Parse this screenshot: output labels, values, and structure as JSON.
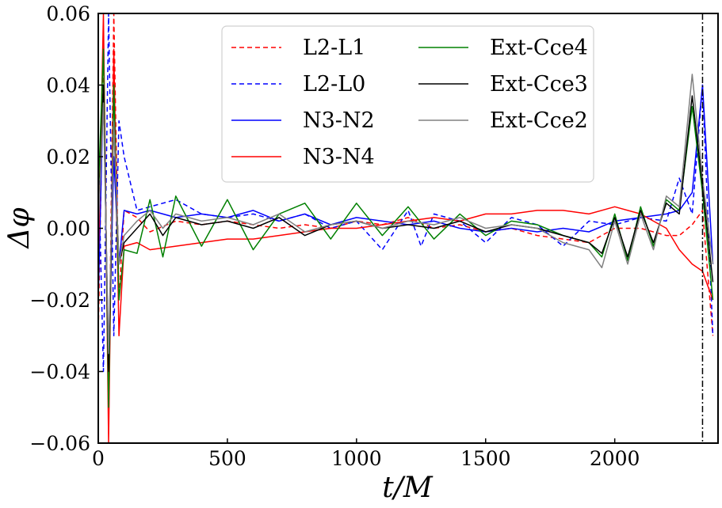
{
  "chart_data": {
    "type": "line",
    "xlabel": "t/M",
    "ylabel": "Δφ",
    "xlim": [
      0,
      2400
    ],
    "ylim": [
      -0.06,
      0.06
    ],
    "xticks": [
      0,
      500,
      1000,
      1500,
      2000
    ],
    "xtick_labels": [
      "0",
      "500",
      "1000",
      "1500",
      "2000"
    ],
    "yticks": [
      -0.06,
      -0.04,
      -0.02,
      0.0,
      0.02,
      0.04,
      0.06
    ],
    "ytick_labels": [
      "−0.06",
      "−0.04",
      "−0.02",
      "0.00",
      "0.02",
      "0.04",
      "0.06"
    ],
    "grid": false,
    "legend_position": "top-center",
    "legend_columns": 2,
    "vertical_line": {
      "x": 2340,
      "style": "dash-dot",
      "color": "#000000"
    },
    "series": [
      {
        "name": "L2-L1",
        "color": "#ff0000",
        "dash": "dashed",
        "x": [
          0,
          20,
          40,
          60,
          80,
          100,
          150,
          200,
          300,
          400,
          500,
          600,
          700,
          800,
          900,
          1000,
          1100,
          1200,
          1300,
          1400,
          1500,
          1600,
          1700,
          1800,
          1900,
          2000,
          2100,
          2200,
          2250,
          2300,
          2340,
          2380
        ],
        "y": [
          -0.03,
          0.05,
          -0.05,
          0.06,
          -0.02,
          0.005,
          0.003,
          -0.001,
          0.002,
          0.001,
          0.002,
          0.001,
          0.0,
          0.001,
          0.0,
          0.002,
          0.001,
          0.003,
          0.0,
          0.001,
          -0.001,
          0.0,
          -0.002,
          -0.003,
          -0.004,
          0.0,
          0.0,
          -0.002,
          -0.002,
          0.001,
          0.005,
          -0.03
        ]
      },
      {
        "name": "L2-L0",
        "color": "#0000ff",
        "dash": "dashed",
        "x": [
          0,
          20,
          40,
          60,
          80,
          100,
          150,
          200,
          300,
          400,
          500,
          600,
          700,
          800,
          900,
          1000,
          1100,
          1200,
          1250,
          1300,
          1400,
          1500,
          1600,
          1700,
          1800,
          1900,
          2000,
          2100,
          2200,
          2250,
          2300,
          2340,
          2380
        ],
        "y": [
          0.02,
          -0.04,
          0.06,
          -0.03,
          0.03,
          0.02,
          0.005,
          0.006,
          0.008,
          0.004,
          0.003,
          0.004,
          0.002,
          0.004,
          0.0,
          0.002,
          -0.006,
          0.005,
          -0.005,
          0.004,
          0.002,
          -0.004,
          0.003,
          0.001,
          -0.005,
          0.002,
          0.001,
          0.003,
          0.002,
          0.014,
          0.004,
          0.04,
          -0.03
        ]
      },
      {
        "name": "N3-N2",
        "color": "#0000ff",
        "dash": "solid",
        "x": [
          0,
          20,
          40,
          60,
          80,
          100,
          150,
          200,
          300,
          400,
          500,
          600,
          700,
          800,
          900,
          1000,
          1100,
          1200,
          1300,
          1400,
          1500,
          1600,
          1700,
          1800,
          1900,
          2000,
          2100,
          2200,
          2250,
          2300,
          2340,
          2380
        ],
        "y": [
          -0.02,
          0.04,
          -0.04,
          0.02,
          -0.01,
          0.005,
          0.004,
          0.005,
          0.003,
          0.004,
          0.003,
          0.005,
          0.002,
          0.004,
          0.001,
          0.003,
          0.002,
          0.001,
          0.002,
          0.0,
          -0.001,
          0.0,
          -0.001,
          0.0,
          -0.001,
          0.002,
          0.003,
          0.004,
          0.005,
          0.01,
          0.04,
          -0.01
        ]
      },
      {
        "name": "N3-N4",
        "color": "#ff0000",
        "dash": "solid",
        "x": [
          0,
          20,
          40,
          60,
          80,
          100,
          150,
          200,
          300,
          400,
          500,
          600,
          700,
          800,
          900,
          1000,
          1100,
          1200,
          1300,
          1400,
          1500,
          1600,
          1700,
          1800,
          1900,
          2000,
          2100,
          2200,
          2250,
          2300,
          2340,
          2380
        ],
        "y": [
          -0.01,
          0.06,
          -0.06,
          0.05,
          -0.03,
          -0.005,
          -0.004,
          -0.006,
          -0.005,
          -0.004,
          -0.003,
          -0.003,
          -0.002,
          -0.001,
          0.0,
          0.0,
          0.001,
          0.002,
          0.003,
          0.002,
          0.004,
          0.004,
          0.005,
          0.005,
          0.004,
          0.006,
          0.004,
          0.0,
          -0.006,
          -0.01,
          -0.012,
          -0.02
        ]
      },
      {
        "name": "Ext-Cce4",
        "color": "#008000",
        "dash": "solid",
        "x": [
          0,
          20,
          40,
          60,
          80,
          100,
          150,
          200,
          250,
          300,
          400,
          500,
          600,
          700,
          800,
          900,
          1000,
          1100,
          1200,
          1300,
          1400,
          1500,
          1600,
          1700,
          1800,
          1900,
          1950,
          2000,
          2050,
          2100,
          2150,
          2200,
          2250,
          2300,
          2340,
          2380
        ],
        "y": [
          0.01,
          0.05,
          -0.05,
          0.04,
          -0.02,
          -0.006,
          -0.007,
          0.008,
          -0.008,
          0.009,
          -0.005,
          0.008,
          -0.006,
          0.004,
          0.007,
          -0.003,
          0.007,
          -0.002,
          0.006,
          -0.003,
          0.004,
          -0.002,
          0.002,
          0.001,
          -0.002,
          -0.004,
          -0.008,
          0.004,
          -0.009,
          0.006,
          -0.005,
          0.008,
          0.005,
          0.034,
          0.01,
          -0.02
        ]
      },
      {
        "name": "Ext-Cce3",
        "color": "#000000",
        "dash": "solid",
        "x": [
          0,
          20,
          40,
          60,
          80,
          100,
          150,
          200,
          250,
          300,
          400,
          500,
          600,
          700,
          800,
          900,
          1000,
          1100,
          1200,
          1300,
          1400,
          1500,
          1600,
          1700,
          1800,
          1900,
          1950,
          2000,
          2050,
          2100,
          2150,
          2200,
          2250,
          2300,
          2340,
          2380
        ],
        "y": [
          0.0,
          0.04,
          -0.04,
          0.03,
          -0.01,
          -0.004,
          0.0,
          0.004,
          -0.002,
          0.003,
          0.001,
          0.002,
          0.0,
          0.003,
          -0.002,
          0.001,
          0.002,
          0.0,
          0.001,
          0.0,
          0.002,
          -0.001,
          0.001,
          0.0,
          -0.002,
          -0.004,
          -0.007,
          0.003,
          -0.008,
          0.005,
          -0.004,
          0.007,
          0.004,
          0.037,
          0.012,
          -0.015
        ]
      },
      {
        "name": "Ext-Cce2",
        "color": "#808080",
        "dash": "solid",
        "x": [
          0,
          20,
          40,
          60,
          80,
          100,
          150,
          200,
          250,
          300,
          400,
          500,
          600,
          700,
          800,
          900,
          1000,
          1100,
          1200,
          1300,
          1400,
          1500,
          1600,
          1700,
          1800,
          1900,
          1950,
          2000,
          2050,
          2100,
          2150,
          2200,
          2250,
          2300,
          2340,
          2380
        ],
        "y": [
          0.0,
          0.035,
          -0.035,
          0.03,
          -0.01,
          -0.002,
          0.002,
          0.005,
          0.0,
          0.004,
          0.002,
          0.003,
          0.001,
          0.004,
          -0.001,
          0.001,
          0.002,
          0.0,
          0.002,
          0.001,
          0.003,
          0.0,
          0.001,
          0.0,
          -0.004,
          -0.006,
          -0.011,
          0.002,
          -0.01,
          0.004,
          -0.006,
          0.009,
          0.006,
          0.043,
          0.014,
          -0.01
        ]
      }
    ]
  }
}
